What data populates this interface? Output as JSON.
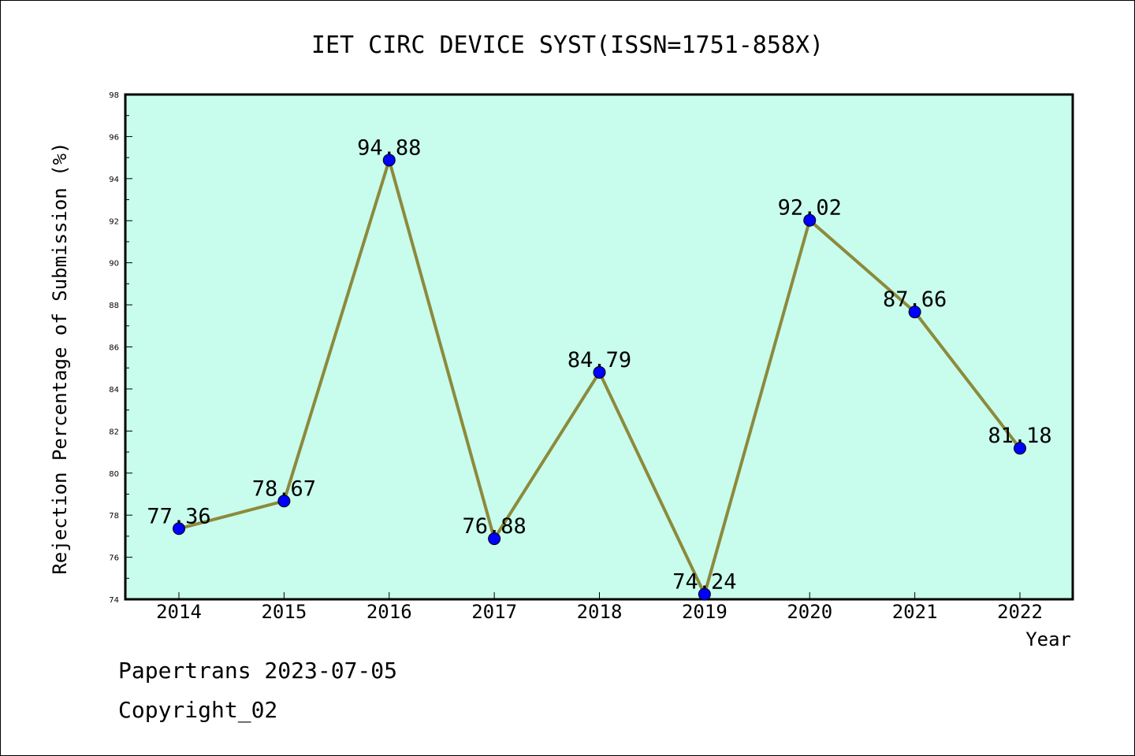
{
  "chart_data": {
    "type": "line",
    "title": "IET CIRC DEVICE SYST(ISSN=1751-858X)",
    "xlabel": "Year",
    "ylabel": "Rejection Percentage of Submission (%)",
    "categories": [
      "2014",
      "2015",
      "2016",
      "2017",
      "2018",
      "2019",
      "2020",
      "2021",
      "2022"
    ],
    "values": [
      77.36,
      78.67,
      94.88,
      76.88,
      84.79,
      74.24,
      92.02,
      87.66,
      81.18
    ],
    "data_labels": [
      "77.36",
      "78.67",
      "94.88",
      "76.88",
      "84.79",
      "74.24",
      "92.02",
      "87.66",
      "81.18"
    ],
    "ylim": [
      74,
      98
    ],
    "yticks": [
      "74",
      "76",
      "78",
      "80",
      "82",
      "84",
      "86",
      "88",
      "90",
      "92",
      "94",
      "96",
      "98"
    ],
    "grid": false,
    "colors": {
      "plot_background": "#c8fcec",
      "line": "#8c8a3c",
      "marker": "#0000ff"
    }
  },
  "footer": {
    "line1": "Papertrans 2023-07-05",
    "line2": "Copyright_02"
  }
}
